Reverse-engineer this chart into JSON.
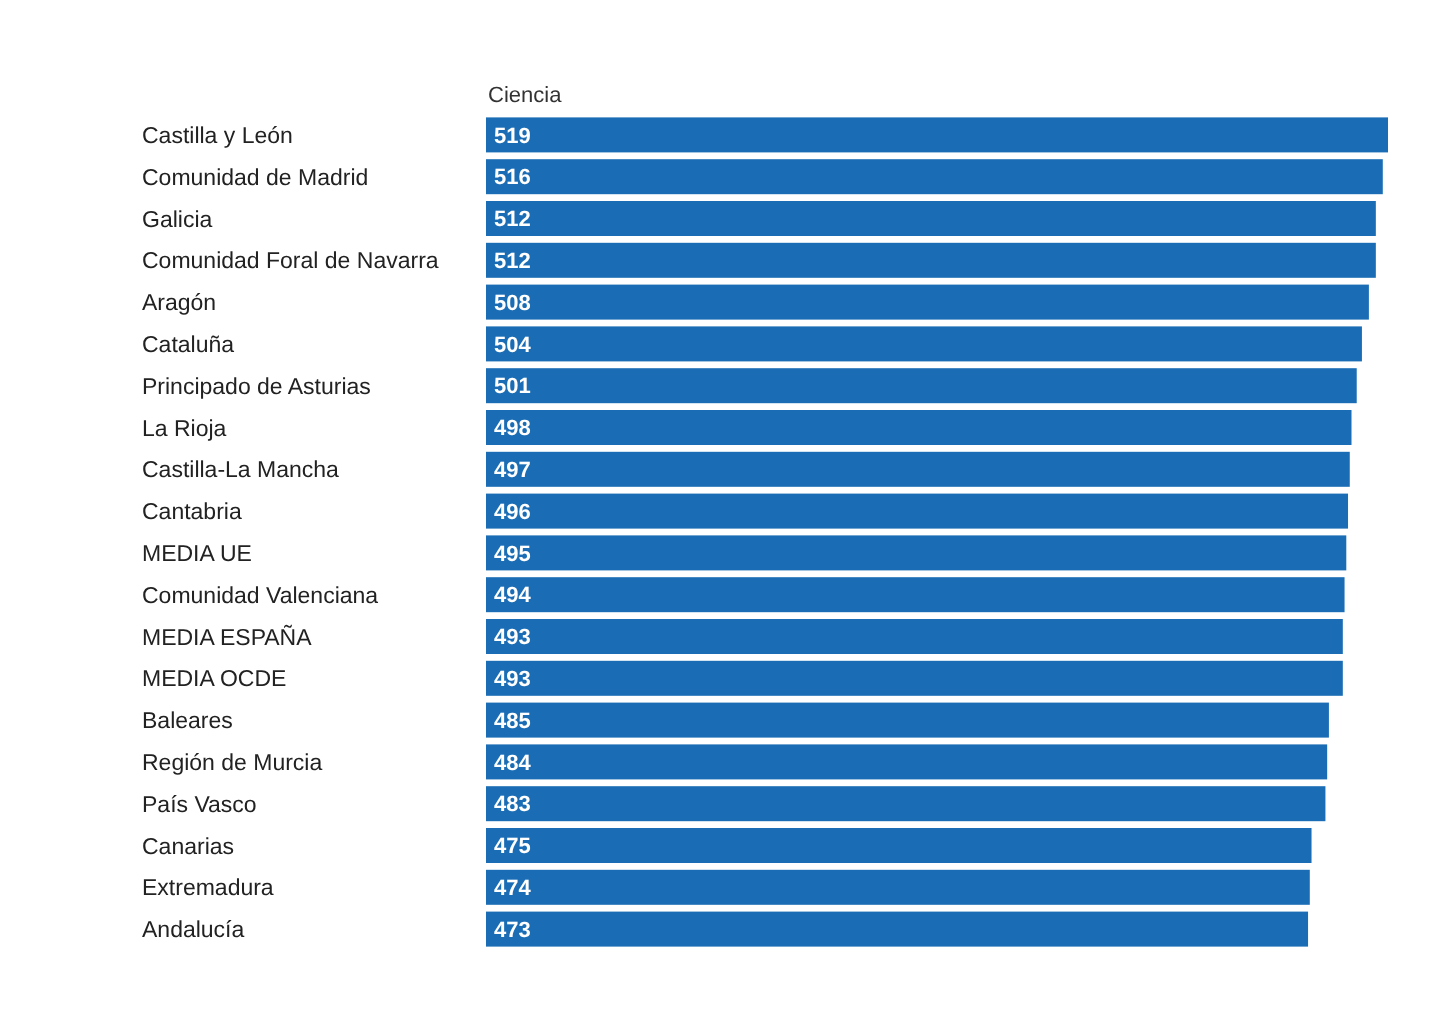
{
  "chart_data": {
    "type": "bar",
    "orientation": "horizontal",
    "title": "Ciencia",
    "categories": [
      "Castilla y León",
      "Comunidad de Madrid",
      "Galicia",
      "Comunidad Foral de Navarra",
      "Aragón",
      "Cataluña",
      "Principado de Asturias",
      "La Rioja",
      "Castilla-La Mancha",
      "Cantabria",
      "MEDIA UE",
      "Comunidad Valenciana",
      "MEDIA ESPAÑA",
      "MEDIA OCDE",
      "Baleares",
      "Región de Murcia",
      "País Vasco",
      "Canarias",
      "Extremadura",
      "Andalucía"
    ],
    "values": [
      519,
      516,
      512,
      512,
      508,
      504,
      501,
      498,
      497,
      496,
      495,
      494,
      493,
      493,
      485,
      484,
      483,
      475,
      474,
      473
    ],
    "color": "#1a6db5",
    "data_labels": true
  }
}
